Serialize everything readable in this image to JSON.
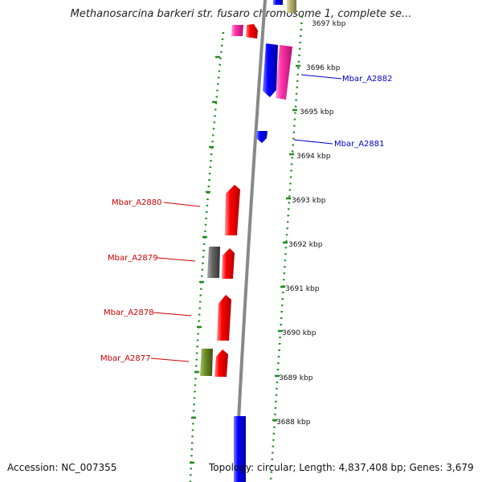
{
  "title": "Methanosarcina barkeri str. fusaro chromosome 1, complete se...",
  "footer": {
    "accession": "Accession: NC_007355",
    "topology": "Topology: circular; Length: 4,837,408 bp; Genes: 3,679"
  },
  "colors": {
    "forward_gene": "#ff0000",
    "reverse_gene": "#0000ff",
    "pink_gene": "#ff33aa",
    "gray_gene": "#666666",
    "olive_gene": "#6b8e23",
    "tick": "#228b22",
    "backbone": "#888888",
    "forward_label": "#cc0000",
    "reverse_label": "#0000cc"
  },
  "kbp_labels": [
    "3697 kbp",
    "3696 kbp",
    "3695 kbp",
    "3694 kbp",
    "3693 kbp",
    "3692 kbp",
    "3691 kbp",
    "3690 kbp",
    "3689 kbp",
    "3688 kbp"
  ],
  "gene_labels": [
    {
      "text": "Mbar_A2882",
      "strand": "reverse"
    },
    {
      "text": "Mbar_A2881",
      "strand": "reverse"
    },
    {
      "text": "Mbar_A2880",
      "strand": "forward"
    },
    {
      "text": "Mbar_A2879",
      "strand": "forward"
    },
    {
      "text": "Mbar_A2878",
      "strand": "forward"
    },
    {
      "text": "Mbar_A2877",
      "strand": "forward"
    }
  ]
}
